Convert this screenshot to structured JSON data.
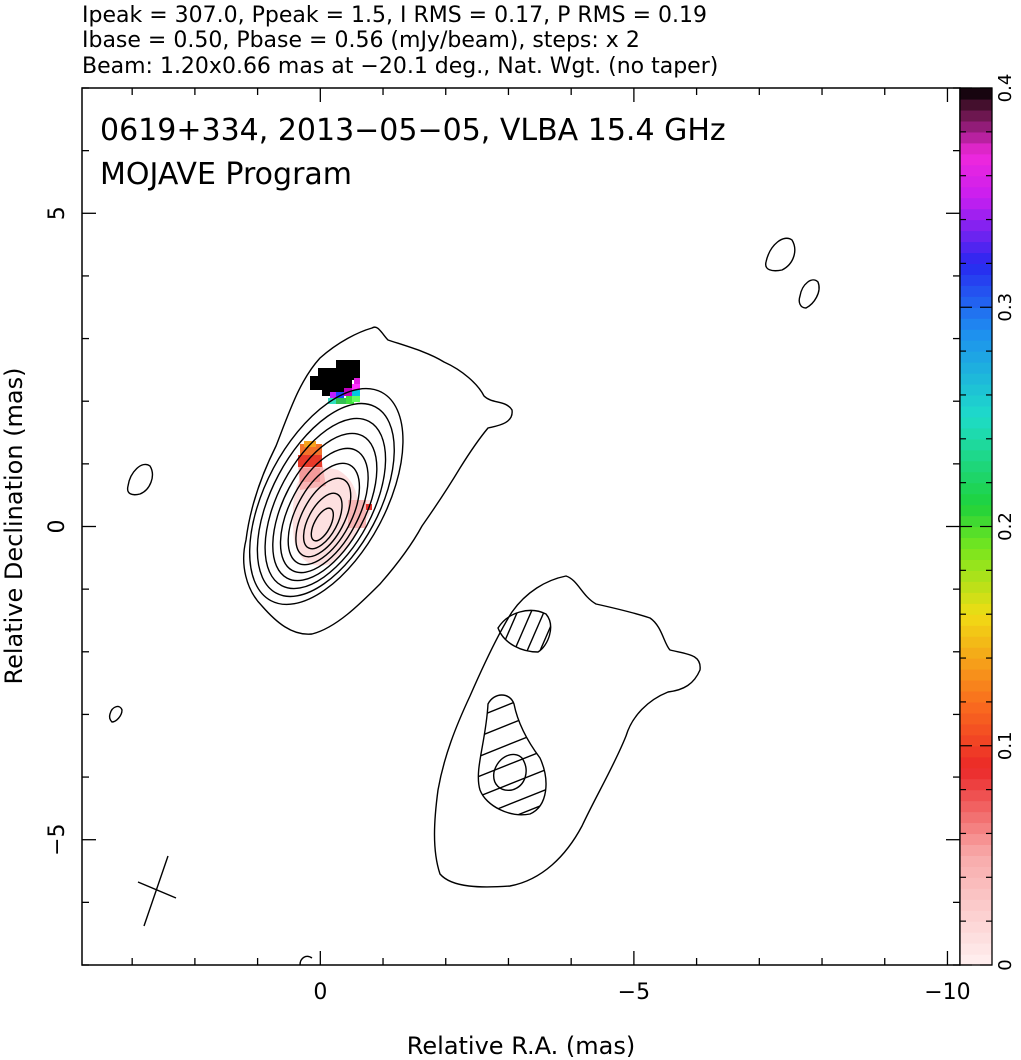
{
  "header": {
    "line1": "Ipeak = 307.0, Ppeak = 1.5, I RMS = 0.17, P RMS = 0.19",
    "line2": "Ibase = 0.50, Pbase = 0.56 (mJy/beam), steps: x 2",
    "line3": "Beam: 1.20x0.66 mas at −20.1 deg., Nat. Wgt. (no taper)"
  },
  "chart_data": {
    "type": "contour",
    "title": "0619+334, 2013−05−05, VLBA 15.4 GHz",
    "subtitle": "MOJAVE Program",
    "xlabel": "Relative R.A. (mas)",
    "ylabel": "Relative Declination (mas)",
    "xlim": [
      3.8,
      -10.2
    ],
    "ylim": [
      -7,
      7
    ],
    "x_ticks": [
      {
        "value": 0,
        "label": "0"
      },
      {
        "value": -5,
        "label": "−5"
      },
      {
        "value": -10,
        "label": "−10"
      }
    ],
    "y_ticks": [
      {
        "value": 5,
        "label": "5"
      },
      {
        "value": 0,
        "label": "0"
      },
      {
        "value": -5,
        "label": "−5"
      }
    ],
    "colorbar": {
      "min": 0,
      "max": 0.4,
      "ticks": [
        {
          "value": 0,
          "label": "0"
        },
        {
          "value": 0.1,
          "label": "0.1"
        },
        {
          "value": 0.2,
          "label": "0.2"
        },
        {
          "value": 0.3,
          "label": "0.3"
        },
        {
          "value": 0.4,
          "label": "0.4"
        }
      ]
    },
    "core": {
      "ra": 0.0,
      "dec": 0.0
    },
    "contour_levels_mJy_per_beam": [
      0.5,
      1,
      2,
      4,
      8,
      16,
      32,
      64,
      128,
      256
    ],
    "polarization_pixels": [
      {
        "ra": -0.05,
        "dec": 1.25,
        "frac": 0.11
      },
      {
        "ra": 0.0,
        "dec": 0.95,
        "frac": 0.08
      },
      {
        "ra": -0.1,
        "dec": 0.6,
        "frac": 0.03
      },
      {
        "ra": -0.3,
        "dec": 0.1,
        "frac": 0.02
      },
      {
        "ra": -0.7,
        "dec": 0.25,
        "frac": 0.05
      },
      {
        "ra": -0.45,
        "dec": 2.15,
        "frac": 0.3
      },
      {
        "ra": -0.3,
        "dec": 2.05,
        "frac": 0.22
      },
      {
        "ra": -0.55,
        "dec": 2.05,
        "frac": 0.2
      },
      {
        "ra": -0.3,
        "dec": 2.3,
        "frac": 0.4
      }
    ],
    "beam": {
      "major_mas": 1.2,
      "minor_mas": 0.66,
      "pa_deg": -20.1,
      "center_ra": 2.8,
      "center_dec": -5.8
    }
  }
}
